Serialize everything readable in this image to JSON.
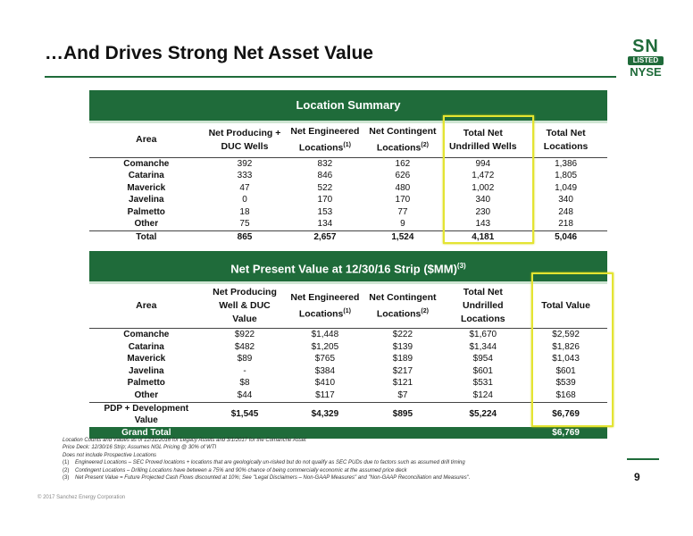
{
  "title": "…And Drives Strong Net Asset Value",
  "logo": {
    "top": "SN",
    "middle": "LISTED",
    "bottom": "NYSE"
  },
  "location_summary": {
    "band_title": "Location Summary",
    "headers": {
      "area": "Area",
      "col1": "Net Producing + DUC Wells",
      "col2": "Net Engineered Locations",
      "col2_sup": "(1)",
      "col3": "Net Contingent Locations",
      "col3_sup": "(2)",
      "col4": "Total Net Undrilled Wells",
      "col5": "Total Net Locations"
    },
    "rows": [
      {
        "area": "Comanche",
        "v1": "392",
        "v2": "832",
        "v3": "162",
        "v4": "994",
        "v5": "1,386"
      },
      {
        "area": "Catarina",
        "v1": "333",
        "v2": "846",
        "v3": "626",
        "v4": "1,472",
        "v5": "1,805"
      },
      {
        "area": "Maverick",
        "v1": "47",
        "v2": "522",
        "v3": "480",
        "v4": "1,002",
        "v5": "1,049"
      },
      {
        "area": "Javelina",
        "v1": "0",
        "v2": "170",
        "v3": "170",
        "v4": "340",
        "v5": "340"
      },
      {
        "area": "Palmetto",
        "v1": "18",
        "v2": "153",
        "v3": "77",
        "v4": "230",
        "v5": "248"
      },
      {
        "area": "Other",
        "v1": "75",
        "v2": "134",
        "v3": "9",
        "v4": "143",
        "v5": "218"
      }
    ],
    "total": {
      "area": "Total",
      "v1": "865",
      "v2": "2,657",
      "v3": "1,524",
      "v4": "4,181",
      "v5": "5,046"
    }
  },
  "npv": {
    "band_title": "Net Present Value at 12/30/16 Strip ($MM)",
    "band_sup": "(3)",
    "headers": {
      "area": "Area",
      "col1": "Net Producing Well & DUC Value",
      "col2": "Net Engineered Locations",
      "col2_sup": "(1)",
      "col3": "Net Contingent Locations",
      "col3_sup": "(2)",
      "col4": "Total Net Undrilled Locations",
      "col5": "Total Value"
    },
    "rows": [
      {
        "area": "Comanche",
        "v1": "$922",
        "v2": "$1,448",
        "v3": "$222",
        "v4": "$1,670",
        "v5": "$2,592"
      },
      {
        "area": "Catarina",
        "v1": "$482",
        "v2": "$1,205",
        "v3": "$139",
        "v4": "$1,344",
        "v5": "$1,826"
      },
      {
        "area": "Maverick",
        "v1": "$89",
        "v2": "$765",
        "v3": "$189",
        "v4": "$954",
        "v5": "$1,043"
      },
      {
        "area": "Javelina",
        "v1": "-",
        "v2": "$384",
        "v3": "$217",
        "v4": "$601",
        "v5": "$601"
      },
      {
        "area": "Palmetto",
        "v1": "$8",
        "v2": "$410",
        "v3": "$121",
        "v4": "$531",
        "v5": "$539"
      },
      {
        "area": "Other",
        "v1": "$44",
        "v2": "$117",
        "v3": "$7",
        "v4": "$124",
        "v5": "$168"
      }
    ],
    "pdp": {
      "area": "PDP + Development Value",
      "v1": "$1,545",
      "v2": "$4,329",
      "v3": "$895",
      "v4": "$5,224",
      "v5": "$6,769"
    },
    "grand": {
      "area": "Grand Total",
      "v5": "$6,769"
    }
  },
  "footnotes": {
    "line1": "Location Counts and Values as of 12/31/2016 for Legacy Assets and 3/1/2017 for the Comanche Asset",
    "line2": "Price Deck: 12/30/16 Strip; Assumes NGL Pricing @ 30% of WTI",
    "line3": "Does not include Prospective Locations",
    "notes": [
      {
        "num": "(1)",
        "text": "Engineered Locations – SEC Proved locations + locations that are geologically un-risked but do not qualify as SEC PUDs due to factors such as assumed drill timing"
      },
      {
        "num": "(2)",
        "text": "Contingent Locations – Drilling Locations have between a 75% and 90% chance of being commercially economic at the assumed price deck"
      },
      {
        "num": "(3)",
        "text": "Net Present Value = Future Projected Cash Flows discounted at 10%; See \"Legal Disclaimers – Non-GAAP Measures\" and \"Non-GAAP Reconciliation and Measures\"."
      }
    ]
  },
  "page_number": "9",
  "copyright": "© 2017 Sanchez Energy Corporation",
  "colors": {
    "brand_green": "#1f6b3a",
    "highlight_yellow": "#e4e432"
  }
}
